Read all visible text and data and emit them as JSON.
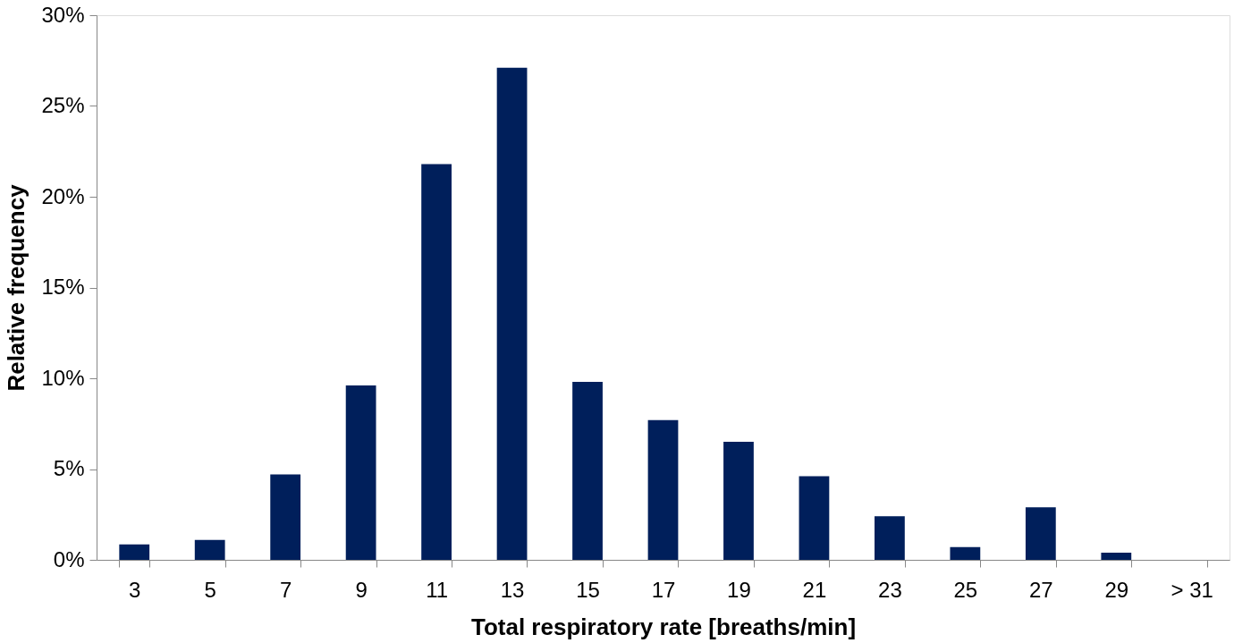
{
  "chart_data": {
    "type": "bar",
    "xlabel": "Total respiratory rate [breaths/min]",
    "ylabel": "Relative frequency",
    "categories": [
      "3",
      "5",
      "7",
      "9",
      "11",
      "13",
      "15",
      "17",
      "19",
      "21",
      "23",
      "25",
      "27",
      "29",
      "> 31"
    ],
    "values": [
      0.85,
      1.1,
      4.7,
      9.6,
      21.8,
      27.1,
      9.8,
      7.7,
      6.5,
      4.6,
      2.4,
      0.7,
      2.9,
      0.4,
      0
    ],
    "color": "#001f5b",
    "ylim": [
      0,
      30
    ],
    "yticks": [
      {
        "value": 0,
        "label": "0%"
      },
      {
        "value": 5,
        "label": "5%"
      },
      {
        "value": 10,
        "label": "10%"
      },
      {
        "value": 15,
        "label": "15%"
      },
      {
        "value": 20,
        "label": "20%"
      },
      {
        "value": 25,
        "label": "25%"
      },
      {
        "value": 30,
        "label": "30%"
      }
    ],
    "grid": false
  }
}
